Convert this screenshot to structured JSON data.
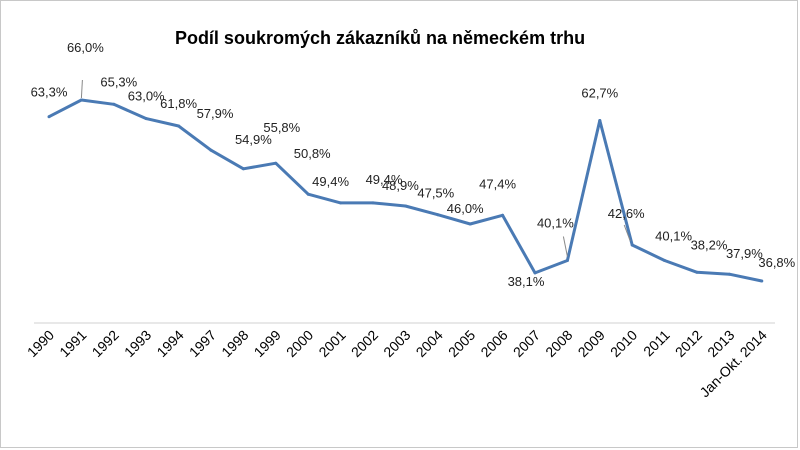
{
  "chart_data": {
    "type": "line",
    "title": "Podíl soukromých zákazníků na německém trhu",
    "xlabel": "",
    "ylabel": "",
    "categories": [
      "1990",
      "1991",
      "1992",
      "1993",
      "1994",
      "1997",
      "1998",
      "1999",
      "2000",
      "2001",
      "2002",
      "2003",
      "2004",
      "2005",
      "2006",
      "2007",
      "2008",
      "2009",
      "2010",
      "2011",
      "2012",
      "2013",
      "Jan-Okt. 2014"
    ],
    "series": [
      {
        "values": [
          63.3,
          66.0,
          65.3,
          63.0,
          61.8,
          57.9,
          54.9,
          55.8,
          50.8,
          49.4,
          49.4,
          48.9,
          47.5,
          46.0,
          47.4,
          38.1,
          40.1,
          62.7,
          42.6,
          40.1,
          38.2,
          37.9,
          36.8
        ],
        "labels": [
          "63,3%",
          "66,0%",
          "65,3%",
          "63,0%",
          "61,8%",
          "57,9%",
          "54,9%",
          "55,8%",
          "50,8%",
          "49,4%",
          "49,4%",
          "48,9%",
          "47,5%",
          "46,0%",
          "47,4%",
          "38,1%",
          "40,1%",
          "62,7%",
          "42,6%",
          "40,1%",
          "38,2%",
          "37,9%",
          "36,8%"
        ],
        "color": "#4a7ab4"
      }
    ],
    "ylim": [
      25,
      75
    ],
    "grid": false,
    "legend": "none"
  }
}
